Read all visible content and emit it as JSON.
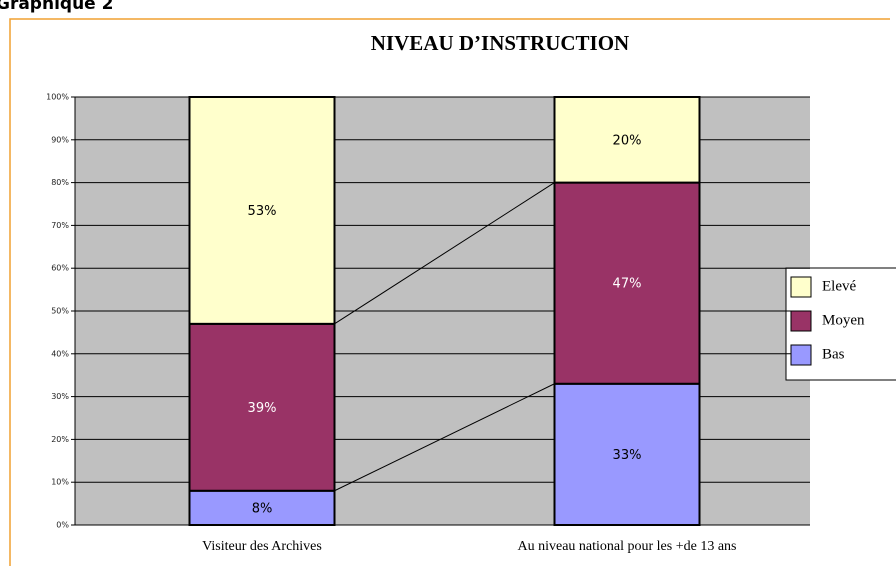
{
  "heading": "Graphique 2",
  "chart_data": {
    "type": "stacked_bar",
    "title": "NIVEAU D’INSTRUCTION",
    "categories": [
      "Visiteur des Archives",
      "Au niveau national pour les +de 13 ans"
    ],
    "series": [
      {
        "name": "Bas",
        "color": "#9999ff",
        "values": [
          8,
          33
        ],
        "value_labels": [
          "8%",
          "33%"
        ]
      },
      {
        "name": "Moyen",
        "color": "#993366",
        "values": [
          39,
          47
        ],
        "value_labels": [
          "39%",
          "47%"
        ]
      },
      {
        "name": "Elevé",
        "color": "#ffffcc",
        "values": [
          53,
          20
        ],
        "value_labels": [
          "53%",
          "20%"
        ]
      }
    ],
    "ylim": [
      0,
      100
    ],
    "yticks": [
      {
        "value": 0,
        "label": "0%"
      },
      {
        "value": 10,
        "label": "10%"
      },
      {
        "value": 20,
        "label": "20%"
      },
      {
        "value": 30,
        "label": "30%"
      },
      {
        "value": 40,
        "label": "40%"
      },
      {
        "value": 50,
        "label": "50%"
      },
      {
        "value": 60,
        "label": "60%"
      },
      {
        "value": 70,
        "label": "70%"
      },
      {
        "value": 80,
        "label": "80%"
      },
      {
        "value": 90,
        "label": "90%"
      },
      {
        "value": 100,
        "label": "100%"
      }
    ],
    "grid": true,
    "legend": "right"
  }
}
